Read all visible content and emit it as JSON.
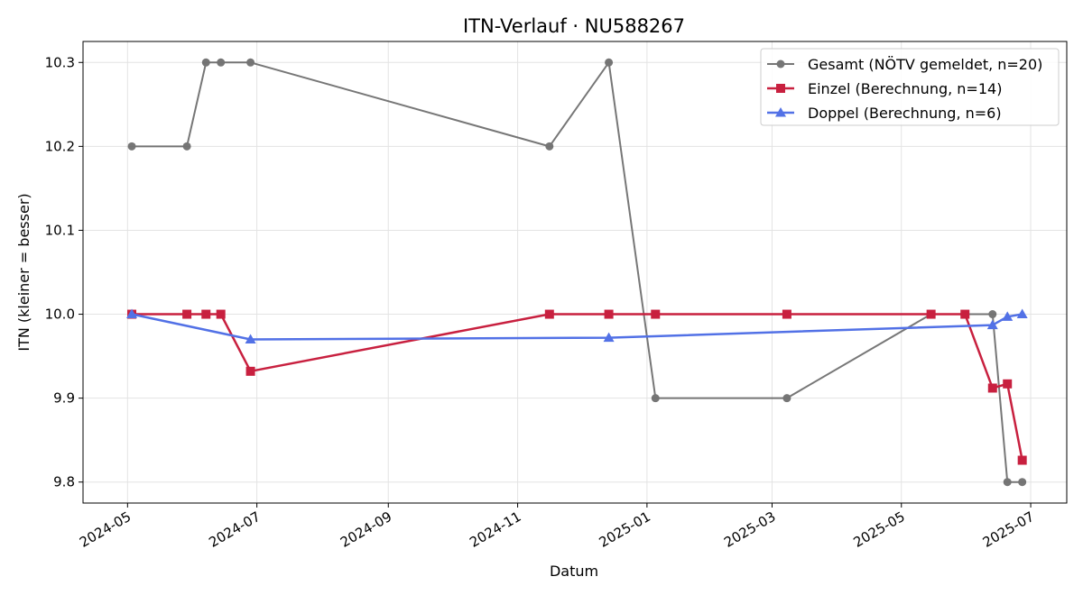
{
  "chart_data": {
    "type": "line",
    "title": "ITN-Verlauf · NU588267",
    "xlabel": "Datum",
    "ylabel": "ITN  (kleiner = besser)",
    "x_type": "date",
    "xlim": [
      "2024-04-10",
      "2025-07-18"
    ],
    "ylim": [
      9.775,
      10.325
    ],
    "x_ticks": [
      "2024-05-01",
      "2024-07-01",
      "2024-09-01",
      "2024-11-01",
      "2025-01-01",
      "2025-03-01",
      "2025-05-01",
      "2025-07-01"
    ],
    "x_tick_labels": [
      "2024-05",
      "2024-07",
      "2024-09",
      "2024-11",
      "2025-01",
      "2025-03",
      "2025-05",
      "2025-07"
    ],
    "y_ticks": [
      9.8,
      9.9,
      10.0,
      10.1,
      10.2,
      10.3
    ],
    "y_tick_labels": [
      "9.8",
      "9.9",
      "10.0",
      "10.1",
      "10.2",
      "10.3"
    ],
    "grid": true,
    "legend_position": "top-right",
    "series": [
      {
        "name": "Gesamt (NÖTV gemeldet, n=20)",
        "color": "#555555",
        "marker": "circle",
        "points": [
          {
            "x": "2024-05-03",
            "y": 10.2
          },
          {
            "x": "2024-05-29",
            "y": 10.2
          },
          {
            "x": "2024-06-07",
            "y": 10.3
          },
          {
            "x": "2024-06-14",
            "y": 10.3
          },
          {
            "x": "2024-06-28",
            "y": 10.3
          },
          {
            "x": "2024-11-16",
            "y": 10.2
          },
          {
            "x": "2024-12-14",
            "y": 10.3
          },
          {
            "x": "2025-01-05",
            "y": 9.9
          },
          {
            "x": "2025-03-08",
            "y": 9.9
          },
          {
            "x": "2025-05-15",
            "y": 10.0
          },
          {
            "x": "2025-05-31",
            "y": 10.0
          },
          {
            "x": "2025-06-13",
            "y": 10.0
          },
          {
            "x": "2025-06-20",
            "y": 9.8
          },
          {
            "x": "2025-06-27",
            "y": 9.8
          }
        ]
      },
      {
        "name": "Einzel (Berechnung, n=14)",
        "color": "#c8203f",
        "marker": "square",
        "points": [
          {
            "x": "2024-05-03",
            "y": 10.0
          },
          {
            "x": "2024-05-29",
            "y": 10.0
          },
          {
            "x": "2024-06-07",
            "y": 10.0
          },
          {
            "x": "2024-06-14",
            "y": 10.0
          },
          {
            "x": "2024-06-28",
            "y": 9.932
          },
          {
            "x": "2024-11-16",
            "y": 10.0
          },
          {
            "x": "2024-12-14",
            "y": 10.0
          },
          {
            "x": "2025-01-05",
            "y": 10.0
          },
          {
            "x": "2025-03-08",
            "y": 10.0
          },
          {
            "x": "2025-05-15",
            "y": 10.0
          },
          {
            "x": "2025-05-31",
            "y": 10.0
          },
          {
            "x": "2025-06-13",
            "y": 9.912
          },
          {
            "x": "2025-06-20",
            "y": 9.917
          },
          {
            "x": "2025-06-27",
            "y": 9.826
          }
        ]
      },
      {
        "name": "Doppel (Berechnung, n=6)",
        "color": "#5271e6",
        "marker": "triangle",
        "points": [
          {
            "x": "2024-05-03",
            "y": 10.0
          },
          {
            "x": "2024-06-28",
            "y": 9.97
          },
          {
            "x": "2024-12-14",
            "y": 9.972
          },
          {
            "x": "2025-06-13",
            "y": 9.987
          },
          {
            "x": "2025-06-20",
            "y": 9.997
          },
          {
            "x": "2025-06-27",
            "y": 10.0
          }
        ]
      }
    ]
  }
}
